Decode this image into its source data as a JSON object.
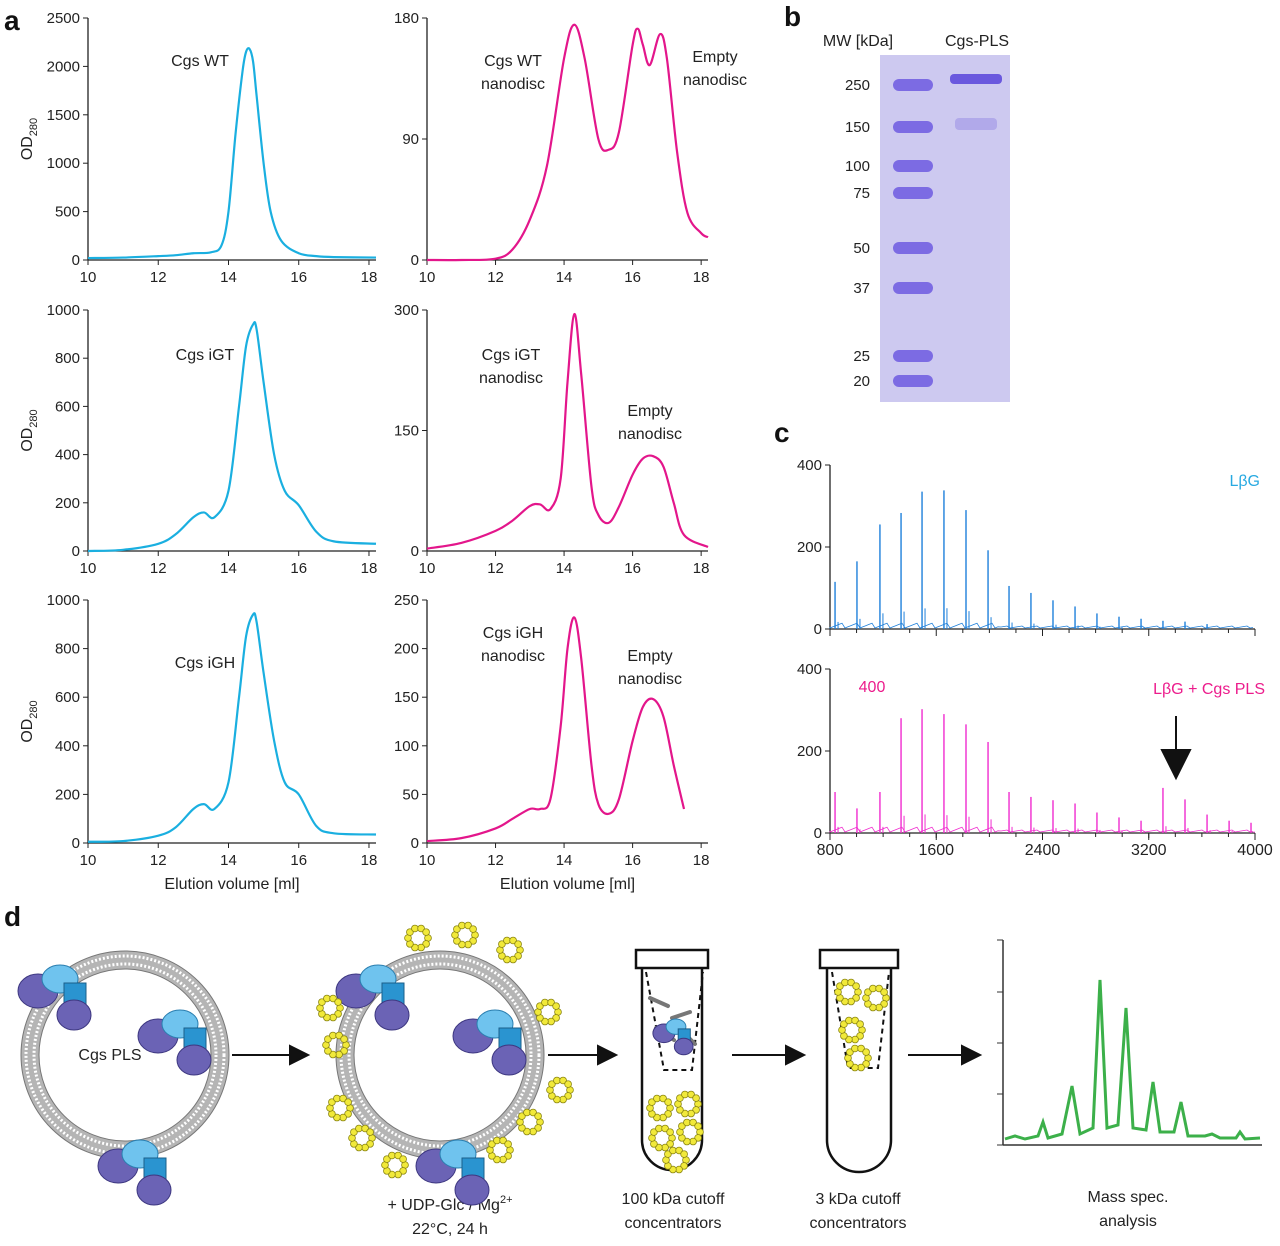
{
  "panel_labels": [
    "a",
    "b",
    "c",
    "d"
  ],
  "chart_data": [
    {
      "type": "line",
      "annotations": [
        [
          "Cgs WT"
        ]
      ],
      "ylabel": {
        "main": "OD",
        "sub": "280"
      },
      "color": "#1aafe0",
      "x": [
        10,
        11,
        12,
        12.5,
        13,
        13.5,
        13.8,
        14,
        14.2,
        14.4,
        14.5,
        14.6,
        14.7,
        14.8,
        15,
        15.2,
        15.5,
        16,
        16.5,
        17,
        18.2
      ],
      "values": [
        20,
        25,
        40,
        50,
        70,
        80,
        150,
        500,
        1300,
        1950,
        2150,
        2180,
        2050,
        1700,
        1000,
        500,
        200,
        70,
        40,
        30,
        25
      ],
      "xlim": [
        10,
        18.2
      ],
      "xticks": [
        10,
        12,
        14,
        16,
        18
      ],
      "ylim": [
        0,
        2500
      ],
      "yticks": [
        0,
        500,
        1000,
        1500,
        2000,
        2500
      ]
    },
    {
      "type": "line",
      "annotations": [
        [
          "Cgs WT",
          "nanodisc"
        ],
        [
          "Empty",
          "nanodisc"
        ]
      ],
      "color": "#e3168b",
      "x": [
        10,
        11,
        12,
        12.5,
        13,
        13.5,
        14,
        14.3,
        14.6,
        15,
        15.3,
        15.6,
        16,
        16.15,
        16.3,
        16.5,
        16.8,
        17,
        17.3,
        17.6,
        18,
        18.2
      ],
      "values": [
        0,
        0,
        1,
        8,
        30,
        70,
        150,
        175,
        150,
        90,
        82,
        95,
        160,
        172,
        160,
        145,
        168,
        150,
        80,
        35,
        20,
        17
      ],
      "xlim": [
        10,
        18.2
      ],
      "xticks": [
        10,
        12,
        14,
        16,
        18
      ],
      "ylim": [
        0,
        180
      ],
      "yticks": [
        0,
        90,
        180
      ]
    },
    {
      "type": "line",
      "annotations": [
        [
          "Cgs iGT"
        ]
      ],
      "ylabel": {
        "main": "OD",
        "sub": "280"
      },
      "color": "#1aafe0",
      "x": [
        10,
        11,
        12,
        12.5,
        13,
        13.3,
        13.6,
        14,
        14.3,
        14.5,
        14.7,
        14.8,
        15,
        15.3,
        15.6,
        16,
        16.5,
        17,
        18.2
      ],
      "values": [
        0,
        5,
        30,
        70,
        140,
        160,
        140,
        250,
        600,
        850,
        940,
        920,
        700,
        400,
        250,
        190,
        80,
        40,
        30
      ],
      "xlim": [
        10,
        18.2
      ],
      "xticks": [
        10,
        12,
        14,
        16,
        18
      ],
      "ylim": [
        0,
        1000
      ],
      "yticks": [
        0,
        200,
        400,
        600,
        800,
        1000
      ]
    },
    {
      "type": "line",
      "annotations": [
        [
          "Cgs iGT",
          "nanodisc"
        ],
        [
          "Empty",
          "nanodisc"
        ]
      ],
      "color": "#e3168b",
      "x": [
        10,
        11,
        12,
        12.5,
        13,
        13.3,
        13.6,
        13.9,
        14.1,
        14.3,
        14.5,
        14.8,
        15,
        15.3,
        15.6,
        16,
        16.3,
        16.6,
        16.9,
        17.2,
        17.5,
        18.2
      ],
      "values": [
        3,
        10,
        25,
        38,
        56,
        58,
        52,
        90,
        210,
        295,
        220,
        80,
        45,
        35,
        55,
        95,
        115,
        118,
        105,
        60,
        20,
        5
      ],
      "xlim": [
        10,
        18.2
      ],
      "xticks": [
        10,
        12,
        14,
        16,
        18
      ],
      "ylim": [
        0,
        300
      ],
      "yticks": [
        0,
        150,
        300
      ]
    },
    {
      "type": "line",
      "annotations": [
        [
          "Cgs iGH"
        ]
      ],
      "ylabel": {
        "main": "OD",
        "sub": "280"
      },
      "xlabel": "Elution volume [ml]",
      "color": "#1aafe0",
      "x": [
        10,
        11,
        12,
        12.5,
        13,
        13.3,
        13.6,
        14,
        14.3,
        14.5,
        14.7,
        14.8,
        15,
        15.3,
        15.6,
        16,
        16.5,
        17,
        18.2
      ],
      "values": [
        5,
        8,
        30,
        65,
        140,
        160,
        140,
        250,
        600,
        850,
        940,
        910,
        700,
        420,
        250,
        200,
        70,
        40,
        35
      ],
      "xlim": [
        10,
        18.2
      ],
      "xticks": [
        10,
        12,
        14,
        16,
        18
      ],
      "ylim": [
        0,
        1000
      ],
      "yticks": [
        0,
        200,
        400,
        600,
        800,
        1000
      ]
    },
    {
      "type": "line",
      "annotations": [
        [
          "Cgs iGH",
          "nanodisc"
        ],
        [
          "Empty",
          "nanodisc"
        ]
      ],
      "xlabel": "Elution volume [ml]",
      "color": "#e3168b",
      "x": [
        10,
        11,
        12,
        12.5,
        13,
        13.3,
        13.6,
        13.9,
        14.1,
        14.3,
        14.5,
        14.8,
        15,
        15.3,
        15.6,
        16,
        16.3,
        16.6,
        16.9,
        17.2,
        17.5
      ],
      "values": [
        2,
        5,
        15,
        25,
        35,
        35,
        45,
        120,
        200,
        232,
        190,
        80,
        40,
        30,
        45,
        105,
        140,
        148,
        130,
        80,
        35
      ],
      "xlim": [
        10,
        18.2
      ],
      "xticks": [
        10,
        12,
        14,
        16,
        18
      ],
      "ylim": [
        0,
        250
      ],
      "yticks": [
        0,
        50,
        100,
        150,
        200,
        250
      ]
    },
    {
      "type": "stem",
      "annotations": [
        [
          "LβG"
        ]
      ],
      "color": "#1f80db",
      "label_color": "#27a9e1",
      "x": [
        838,
        1003,
        1176,
        1335,
        1493,
        1658,
        1824,
        1990,
        2148,
        2313,
        2479,
        2645,
        2810,
        2976,
        3142,
        3307,
        3473,
        3639
      ],
      "values": [
        115,
        165,
        255,
        283,
        335,
        338,
        290,
        192,
        105,
        88,
        70,
        55,
        38,
        30,
        25,
        20,
        18,
        12
      ],
      "xlim": [
        800,
        4000
      ],
      "ylim": [
        0,
        400
      ],
      "yticks": [
        0,
        200,
        400
      ]
    },
    {
      "type": "stem",
      "annotations": [
        [
          "400"
        ],
        [
          "LβG + Cgs PLS"
        ]
      ],
      "color": "#f02ccf",
      "label_color": "#ec1c8c",
      "x": [
        838,
        1003,
        1176,
        1335,
        1493,
        1658,
        1824,
        1990,
        2148,
        2313,
        2479,
        2645,
        2810,
        2976,
        3142,
        3307,
        3473,
        3639,
        3805,
        3970
      ],
      "values": [
        100,
        60,
        100,
        280,
        302,
        290,
        265,
        222,
        100,
        88,
        80,
        72,
        50,
        38,
        30,
        110,
        82,
        45,
        30,
        25
      ],
      "xlim": [
        800,
        4000
      ],
      "xticks": [
        800,
        1600,
        2400,
        3200,
        4000
      ],
      "ylim": [
        0,
        400
      ],
      "yticks": [
        0,
        200,
        400
      ]
    }
  ],
  "gel": {
    "axis_title": "MW [kDa]",
    "lane_title": "Cgs-PLS",
    "markers": [
      250,
      150,
      100,
      75,
      50,
      37,
      25,
      20
    ]
  },
  "diagram": {
    "vesicle_label": "Cgs PLS",
    "reaction": {
      "pre": "+ UDP-Glc / Mg",
      "sup": "2+",
      "line2": "22°C, 24 h"
    },
    "steps": [
      [
        "100 kDa cutoff",
        "concentrators"
      ],
      [
        "3 kDa cutoff",
        "concentrators"
      ],
      [
        "Mass spec.",
        "analysis"
      ]
    ]
  }
}
